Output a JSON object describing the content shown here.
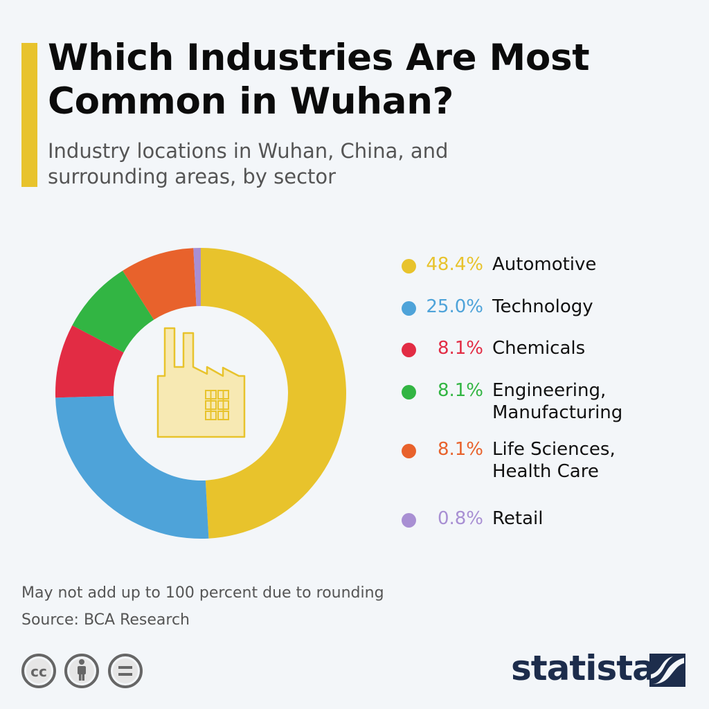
{
  "header": {
    "title": "Which Industries Are Most Common in Wuhan?",
    "subtitle": "Industry locations in Wuhan, China, and surrounding areas, by sector"
  },
  "chart_data": {
    "type": "pie",
    "title": "Which Industries Are Most Common in Wuhan?",
    "subtitle": "Industry locations in Wuhan, China, and surrounding areas, by sector",
    "categories": [
      "Automotive",
      "Technology",
      "Chemicals",
      "Engineering,\nManufacturing",
      "Life Sciences,\nHealth Care",
      "Retail"
    ],
    "values": [
      48.4,
      25.0,
      8.1,
      8.1,
      8.1,
      0.8
    ],
    "value_labels": [
      "48.4%",
      "25.0%",
      "8.1%",
      "8.1%",
      "8.1%",
      "0.8%"
    ],
    "colors": [
      "#e8c32c",
      "#4ea3d9",
      "#e22c44",
      "#32b543",
      "#e8622c",
      "#a88fd3"
    ],
    "legend_position": "right",
    "center_icon": "factory-icon"
  },
  "footer": {
    "note": "May not add up to 100 percent due to rounding",
    "source": "Source: BCA Research",
    "brand": "statista",
    "license_icons": [
      "cc-icon",
      "attribution-icon",
      "no-derivatives-icon"
    ]
  }
}
